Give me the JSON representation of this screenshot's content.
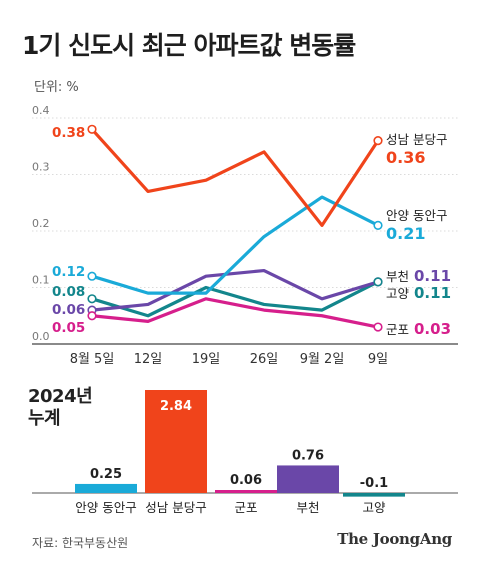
{
  "header": {
    "title": "1기 신도시 최근 아파트값 변동률",
    "unit": "단위: %"
  },
  "footer": {
    "source": "자료: 한국부동산원",
    "brand": "The JoongAng"
  },
  "chart_data": [
    {
      "type": "line",
      "x": [
        "8월 5일",
        "12일",
        "19일",
        "26일",
        "9월 2일",
        "9일"
      ],
      "ylim": [
        0,
        0.4
      ],
      "yticks": [
        "0.0",
        "0.1",
        "0.2",
        "0.3",
        "0.4"
      ],
      "grid": true,
      "series": [
        {
          "name": "성남 분당구",
          "color": "#f0441b",
          "values": [
            0.38,
            0.27,
            0.29,
            0.34,
            0.21,
            0.36
          ],
          "start_label": "0.38",
          "end_label": "0.36"
        },
        {
          "name": "안양 동안구",
          "color": "#1aaad8",
          "values": [
            0.12,
            0.09,
            0.09,
            0.19,
            0.26,
            0.21
          ],
          "start_label": "0.12",
          "end_label": "0.21"
        },
        {
          "name": "부천",
          "color": "#6a47a8",
          "values": [
            0.06,
            0.07,
            0.12,
            0.13,
            0.08,
            0.11
          ],
          "start_label": "0.06",
          "end_label": "0.11"
        },
        {
          "name": "고양",
          "color": "#13868c",
          "values": [
            0.08,
            0.05,
            0.1,
            0.07,
            0.06,
            0.11
          ],
          "start_label": "0.08",
          "end_label": "0.11"
        },
        {
          "name": "군포",
          "color": "#d61f8c",
          "values": [
            0.05,
            0.04,
            0.08,
            0.06,
            0.05,
            0.03
          ],
          "start_label": "0.05",
          "end_label": "0.03"
        }
      ]
    },
    {
      "type": "bar",
      "title": "2024년 누계",
      "categories": [
        "안양 동안구",
        "성남 분당구",
        "군포",
        "부천",
        "고양"
      ],
      "values": [
        0.25,
        2.84,
        0.06,
        0.76,
        -0.1
      ],
      "value_labels": [
        "0.25",
        "2.84",
        "0.06",
        "0.76",
        "-0.1"
      ],
      "colors": [
        "#1aaad8",
        "#f0441b",
        "#d61f8c",
        "#6a47a8",
        "#13868c"
      ]
    }
  ]
}
